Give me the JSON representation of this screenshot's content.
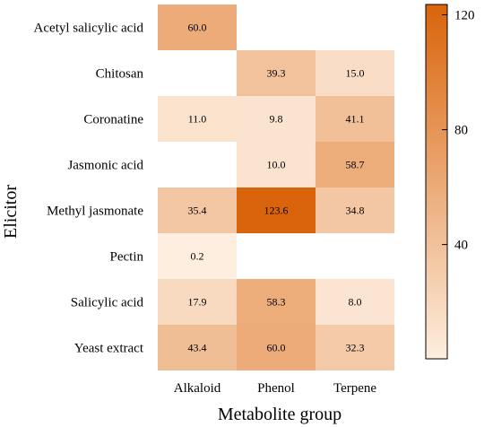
{
  "chart_data": {
    "type": "heatmap",
    "xlabel": "Metabolite group",
    "ylabel": "Elicitor",
    "x_categories": [
      "Alkaloid",
      "Phenol",
      "Terpene"
    ],
    "y_categories": [
      "Acetyl salicylic acid",
      "Chitosan",
      "Coronatine",
      "Jasmonic acid",
      "Methyl jasmonate",
      "Pectin",
      "Salicylic acid",
      "Yeast extract"
    ],
    "values": [
      [
        60.0,
        null,
        null
      ],
      [
        null,
        39.3,
        15.0
      ],
      [
        11.0,
        9.8,
        41.1
      ],
      [
        null,
        10.0,
        58.7
      ],
      [
        35.4,
        123.6,
        34.8
      ],
      [
        0.2,
        null,
        null
      ],
      [
        17.9,
        58.3,
        8.0
      ],
      [
        43.4,
        60.0,
        32.3
      ]
    ],
    "cell_labels": [
      [
        "60.0",
        "",
        ""
      ],
      [
        "",
        "39.3",
        "15.0"
      ],
      [
        "11.0",
        "9.8",
        "41.1"
      ],
      [
        "",
        "10.0",
        "58.7"
      ],
      [
        "35.4",
        "123.6",
        "34.8"
      ],
      [
        "0.2",
        "",
        ""
      ],
      [
        "17.9",
        "58.3",
        "8.0"
      ],
      [
        "43.4",
        "60.0",
        "32.3"
      ]
    ],
    "colorbar": {
      "range": [
        0.2,
        123.6
      ],
      "ticks": [
        40,
        80,
        120
      ],
      "tick_labels": [
        "40",
        "80",
        "120"
      ],
      "color_low": "#fdeedf",
      "color_high": "#d9640b"
    },
    "grid": false
  }
}
